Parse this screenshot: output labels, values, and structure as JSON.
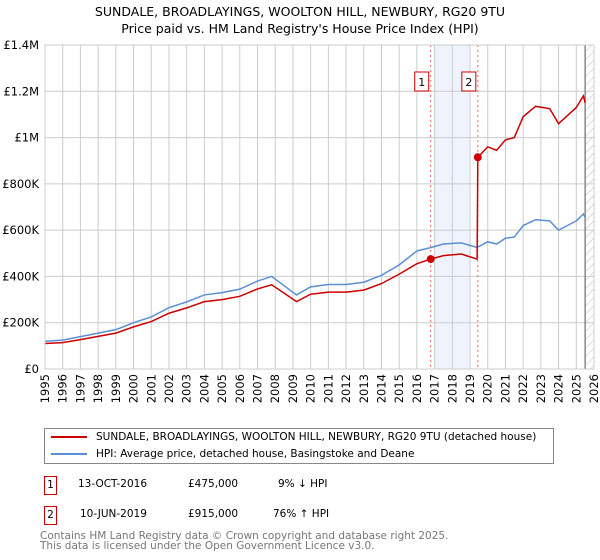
{
  "chart_data": {
    "type": "line",
    "title": "SUNDALE, BROADLAYINGS, WOOLTON HILL, NEWBURY, RG20 9TU",
    "subtitle": "Price paid vs. HM Land Registry's House Price Index (HPI)",
    "xlim": [
      1995,
      2026
    ],
    "ylim": [
      0,
      1400000
    ],
    "x_ticks": [
      "1995",
      "1996",
      "1997",
      "1998",
      "1999",
      "2000",
      "2001",
      "2002",
      "2003",
      "2004",
      "2005",
      "2006",
      "2007",
      "2008",
      "2009",
      "2010",
      "2011",
      "2012",
      "2013",
      "2014",
      "2015",
      "2016",
      "2017",
      "2018",
      "2019",
      "2020",
      "2021",
      "2022",
      "2023",
      "2024",
      "2025",
      "2026"
    ],
    "y_ticks": [
      {
        "v": 0,
        "label": "£0"
      },
      {
        "v": 200000,
        "label": "£200K"
      },
      {
        "v": 400000,
        "label": "£400K"
      },
      {
        "v": 600000,
        "label": "£600K"
      },
      {
        "v": 800000,
        "label": "£800K"
      },
      {
        "v": 1000000,
        "label": "£1M"
      },
      {
        "v": 1200000,
        "label": "£1.2M"
      },
      {
        "v": 1400000,
        "label": "£1.4M"
      }
    ],
    "grid": true,
    "series": [
      {
        "name": "SUNDALE, BROADLAYINGS, WOOLTON HILL, NEWBURY, RG20 9TU (detached house)",
        "color": "#cc0000",
        "points": [
          [
            1995,
            110000
          ],
          [
            1996,
            114000
          ],
          [
            1997,
            127000
          ],
          [
            1998,
            141000
          ],
          [
            1999,
            155000
          ],
          [
            2000,
            182000
          ],
          [
            2001,
            205000
          ],
          [
            2002,
            241000
          ],
          [
            2003,
            264000
          ],
          [
            2004,
            291000
          ],
          [
            2005,
            300000
          ],
          [
            2006,
            314000
          ],
          [
            2007,
            346000
          ],
          [
            2007.8,
            364000
          ],
          [
            2008.5,
            328000
          ],
          [
            2009.2,
            291000
          ],
          [
            2010,
            323000
          ],
          [
            2011,
            332000
          ],
          [
            2012,
            332000
          ],
          [
            2013,
            341000
          ],
          [
            2014,
            369000
          ],
          [
            2015,
            410000
          ],
          [
            2016,
            455000
          ],
          [
            2016.78,
            475000
          ],
          [
            2017.5,
            490000
          ],
          [
            2018.5,
            497000
          ],
          [
            2019.4,
            475000
          ],
          [
            2019.44,
            915000
          ],
          [
            2020,
            960000
          ],
          [
            2020.5,
            945000
          ],
          [
            2021,
            990000
          ],
          [
            2021.5,
            1000000
          ],
          [
            2022,
            1090000
          ],
          [
            2022.7,
            1135000
          ],
          [
            2023.5,
            1125000
          ],
          [
            2024,
            1060000
          ],
          [
            2024.5,
            1095000
          ],
          [
            2025,
            1130000
          ],
          [
            2025.4,
            1180000
          ],
          [
            2025.5,
            1150000
          ]
        ]
      },
      {
        "name": "HPI: Average price, detached house, Basingstoke and Deane",
        "color": "#5b8fd4",
        "points": [
          [
            1995,
            120000
          ],
          [
            1996,
            125000
          ],
          [
            1997,
            140000
          ],
          [
            1998,
            155000
          ],
          [
            1999,
            170000
          ],
          [
            2000,
            200000
          ],
          [
            2001,
            225000
          ],
          [
            2002,
            265000
          ],
          [
            2003,
            290000
          ],
          [
            2004,
            320000
          ],
          [
            2005,
            330000
          ],
          [
            2006,
            345000
          ],
          [
            2007,
            380000
          ],
          [
            2007.8,
            400000
          ],
          [
            2008.5,
            360000
          ],
          [
            2009.2,
            320000
          ],
          [
            2010,
            355000
          ],
          [
            2011,
            365000
          ],
          [
            2012,
            365000
          ],
          [
            2013,
            375000
          ],
          [
            2014,
            405000
          ],
          [
            2015,
            450000
          ],
          [
            2016,
            510000
          ],
          [
            2016.8,
            525000
          ],
          [
            2017.5,
            540000
          ],
          [
            2018.5,
            545000
          ],
          [
            2019.4,
            525000
          ],
          [
            2020,
            550000
          ],
          [
            2020.5,
            540000
          ],
          [
            2021,
            565000
          ],
          [
            2021.5,
            570000
          ],
          [
            2022,
            620000
          ],
          [
            2022.7,
            645000
          ],
          [
            2023.5,
            640000
          ],
          [
            2024,
            600000
          ],
          [
            2024.5,
            620000
          ],
          [
            2025,
            640000
          ],
          [
            2025.4,
            670000
          ],
          [
            2025.5,
            655000
          ]
        ]
      }
    ],
    "sales": [
      {
        "label": "1",
        "x": 2016.78,
        "y": 475000
      },
      {
        "label": "2",
        "x": 2019.44,
        "y": 915000
      }
    ],
    "highlight": [
      2017,
      2019
    ],
    "forecast_from": 2025.5
  },
  "legend": {
    "red": "SUNDALE, BROADLAYINGS, WOOLTON HILL, NEWBURY, RG20 9TU (detached house)",
    "blue": "HPI: Average price, detached house, Basingstoke and Deane"
  },
  "sales_table": [
    {
      "num": "1",
      "date": "13-OCT-2016",
      "price": "£475,000",
      "hpi": "9% ↓ HPI"
    },
    {
      "num": "2",
      "date": "10-JUN-2019",
      "price": "£915,000",
      "hpi": "76% ↑ HPI"
    }
  ],
  "footer": {
    "line1": "Contains HM Land Registry data © Crown copyright and database right 2025.",
    "line2": "This data is licensed under the Open Government Licence v3.0."
  }
}
